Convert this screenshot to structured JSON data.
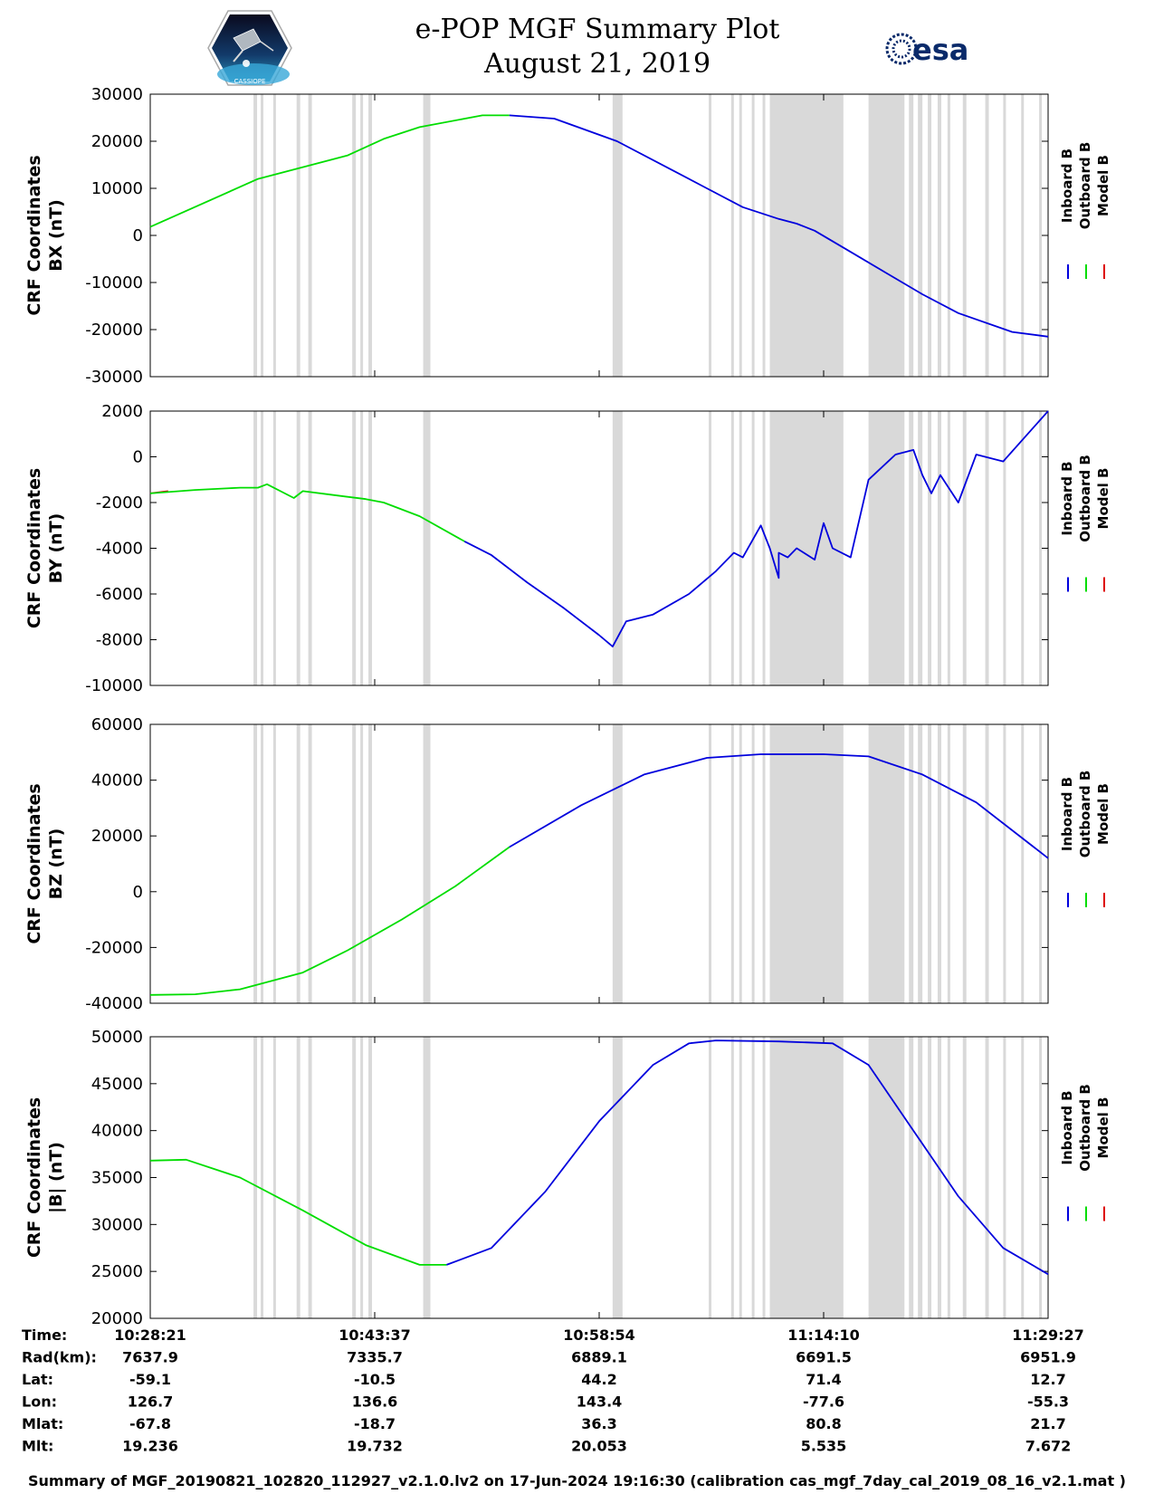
{
  "header": {
    "title_line1": "e-POP MGF Summary Plot",
    "title_line2": "August 21, 2019",
    "left_logo_text": "CASSIOPE",
    "right_logo_text": "esa"
  },
  "colors": {
    "inboard": "#0000dd",
    "outboard": "#00dd00",
    "model": "#dd0000",
    "gap": "#d9d9d9"
  },
  "legend": [
    "Inboard B",
    "Outboard B",
    "Model B"
  ],
  "chart_data": [
    {
      "type": "line",
      "ylabel_line1": "CRF Coordinates",
      "ylabel_line2": "BX (nT)",
      "ylim": [
        -30000,
        30000
      ],
      "yticks": [
        -30000,
        -20000,
        -10000,
        0,
        10000,
        20000,
        30000
      ],
      "series": [
        {
          "name": "Outboard B",
          "x": [
            0,
            0.12,
            0.22,
            0.26,
            0.3,
            0.37,
            0.4
          ],
          "values": [
            1800,
            12000,
            17000,
            20500,
            23000,
            25500,
            25500
          ]
        },
        {
          "name": "Inboard B",
          "x": [
            0.4,
            0.45,
            0.52,
            0.58,
            0.62,
            0.66,
            0.7,
            0.72,
            0.74,
            0.78,
            0.82,
            0.86,
            0.9,
            0.96,
            1.0
          ],
          "values": [
            25500,
            24800,
            20000,
            14000,
            10000,
            6000,
            3500,
            2500,
            1000,
            -3500,
            -8000,
            -12500,
            -16500,
            -20500,
            -21500
          ]
        }
      ]
    },
    {
      "type": "line",
      "ylabel_line1": "CRF Coordinates",
      "ylabel_line2": "BY (nT)",
      "ylim": [
        -10000,
        2000
      ],
      "yticks": [
        -10000,
        -8000,
        -6000,
        -4000,
        -2000,
        0,
        2000
      ],
      "series": [
        {
          "name": "Model B",
          "x": [
            0,
            0.02
          ],
          "values": [
            -1600,
            -1500
          ]
        },
        {
          "name": "Outboard B",
          "x": [
            0,
            0.05,
            0.1,
            0.12,
            0.13,
            0.16,
            0.17,
            0.2,
            0.24,
            0.26,
            0.3,
            0.35
          ],
          "values": [
            -1600,
            -1450,
            -1350,
            -1350,
            -1200,
            -1800,
            -1500,
            -1650,
            -1850,
            -2000,
            -2600,
            -3700
          ]
        },
        {
          "name": "Inboard B",
          "x": [
            0.35,
            0.38,
            0.42,
            0.46,
            0.5,
            0.515,
            0.53,
            0.56,
            0.6,
            0.63,
            0.65,
            0.66,
            0.68,
            0.69,
            0.7,
            0.7,
            0.71,
            0.72,
            0.74,
            0.75,
            0.76,
            0.78,
            0.8,
            0.83,
            0.85,
            0.86,
            0.87,
            0.88,
            0.9,
            0.92,
            0.95,
            1.0
          ],
          "values": [
            -3700,
            -4300,
            -5500,
            -6600,
            -7800,
            -8300,
            -7200,
            -6900,
            -6000,
            -5000,
            -4200,
            -4400,
            -3000,
            -4000,
            -5300,
            -4200,
            -4400,
            -4000,
            -4500,
            -2900,
            -4000,
            -4400,
            -1000,
            100,
            300,
            -800,
            -1600,
            -800,
            -2000,
            100,
            -200,
            2000
          ]
        }
      ]
    },
    {
      "type": "line",
      "ylabel_line1": "CRF Coordinates",
      "ylabel_line2": "BZ (nT)",
      "ylim": [
        -40000,
        60000
      ],
      "yticks": [
        -40000,
        -20000,
        0,
        20000,
        40000,
        60000
      ],
      "series": [
        {
          "name": "Outboard B",
          "x": [
            0,
            0.05,
            0.1,
            0.17,
            0.22,
            0.28,
            0.34,
            0.4
          ],
          "values": [
            -37000,
            -36800,
            -35000,
            -29000,
            -21000,
            -10000,
            2000,
            16000
          ]
        },
        {
          "name": "Inboard B",
          "x": [
            0.4,
            0.48,
            0.55,
            0.62,
            0.68,
            0.75,
            0.8,
            0.86,
            0.92,
            1.0
          ],
          "values": [
            16000,
            31000,
            42000,
            48000,
            49300,
            49300,
            48500,
            42000,
            32000,
            12000
          ]
        }
      ]
    },
    {
      "type": "line",
      "ylabel_line1": "CRF Coordinates",
      "ylabel_line2": "|B| (nT)",
      "ylim": [
        20000,
        50000
      ],
      "yticks": [
        20000,
        25000,
        30000,
        35000,
        40000,
        45000,
        50000
      ],
      "series": [
        {
          "name": "Outboard B",
          "x": [
            0,
            0.04,
            0.1,
            0.17,
            0.24,
            0.3,
            0.33
          ],
          "values": [
            36800,
            36900,
            35000,
            31500,
            27800,
            25700,
            25700
          ]
        },
        {
          "name": "Inboard B",
          "x": [
            0.33,
            0.38,
            0.44,
            0.5,
            0.56,
            0.6,
            0.63,
            0.7,
            0.76,
            0.8,
            0.85,
            0.9,
            0.95,
            1.0
          ],
          "values": [
            25700,
            27500,
            33500,
            41000,
            47000,
            49300,
            49600,
            49500,
            49300,
            47000,
            40000,
            33000,
            27500,
            24700
          ]
        }
      ]
    }
  ],
  "gap_intervals": [
    [
      0.115,
      0.119
    ],
    [
      0.123,
      0.126
    ],
    [
      0.137,
      0.14
    ],
    [
      0.163,
      0.167
    ],
    [
      0.176,
      0.18
    ],
    [
      0.225,
      0.229
    ],
    [
      0.234,
      0.237
    ],
    [
      0.243,
      0.247
    ],
    [
      0.304,
      0.312
    ],
    [
      0.515,
      0.526
    ],
    [
      0.622,
      0.625
    ],
    [
      0.647,
      0.65
    ],
    [
      0.656,
      0.659
    ],
    [
      0.67,
      0.673
    ],
    [
      0.682,
      0.685
    ],
    [
      0.69,
      0.772
    ],
    [
      0.8,
      0.84
    ],
    [
      0.845,
      0.85
    ],
    [
      0.855,
      0.86
    ],
    [
      0.866,
      0.87
    ],
    [
      0.877,
      0.881
    ],
    [
      0.888,
      0.891
    ],
    [
      0.905,
      0.909
    ],
    [
      0.93,
      0.934
    ],
    [
      0.95,
      0.953
    ],
    [
      0.97,
      0.973
    ],
    [
      0.99,
      0.993
    ]
  ],
  "x_ticks": [
    "10:28:21",
    "10:43:37",
    "10:58:54",
    "11:14:10",
    "11:29:27"
  ],
  "info_labels": [
    "Time:",
    "Rad(km):",
    "Lat:",
    "Lon:",
    "Mlat:",
    "Mlt:"
  ],
  "info_columns": [
    [
      "10:28:21",
      "7637.9",
      "-59.1",
      "126.7",
      "-67.8",
      "19.236"
    ],
    [
      "10:43:37",
      "7335.7",
      "-10.5",
      "136.6",
      "-18.7",
      "19.732"
    ],
    [
      "10:58:54",
      "6889.1",
      "44.2",
      "143.4",
      "36.3",
      "20.053"
    ],
    [
      "11:14:10",
      "6691.5",
      "71.4",
      "-77.6",
      "80.8",
      "5.535"
    ],
    [
      "11:29:27",
      "6951.9",
      "12.7",
      "-55.3",
      "21.7",
      "7.672"
    ]
  ],
  "footer": "Summary of MGF_20190821_102820_112927_v2.1.0.lv2 on 17-Jun-2024 19:16:30 (calibration cas_mgf_7day_cal_2019_08_16_v2.1.mat )"
}
